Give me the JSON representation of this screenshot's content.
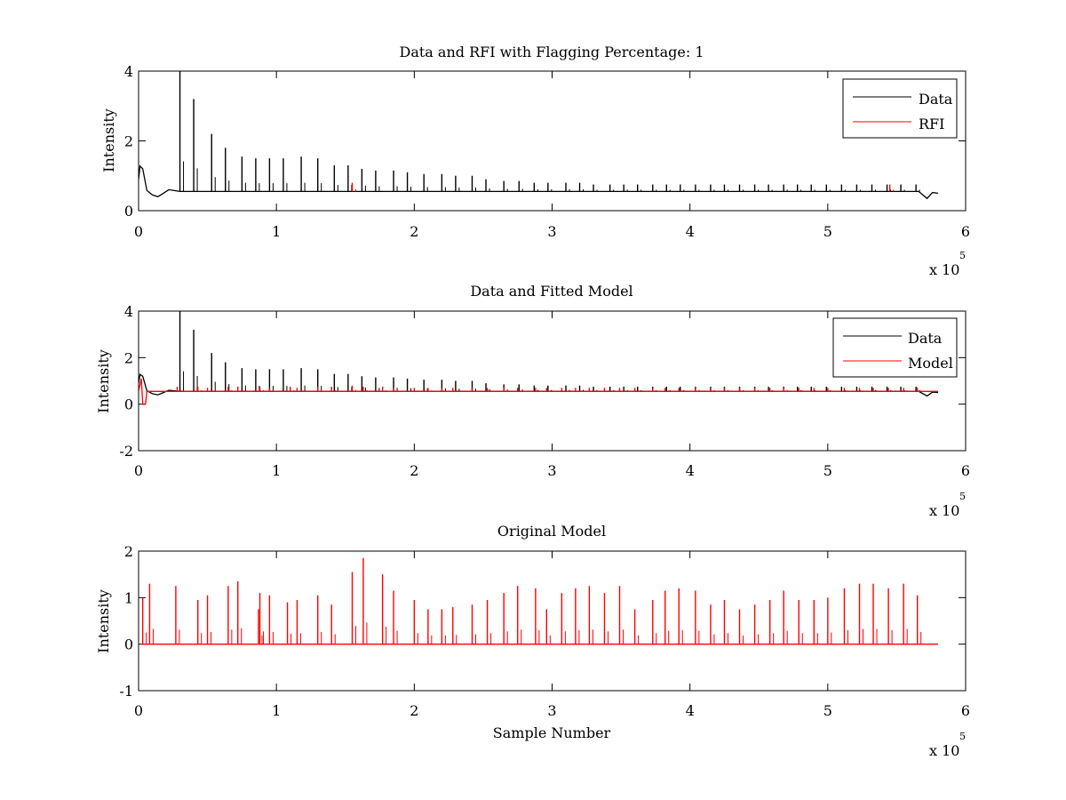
{
  "chart_data": [
    {
      "type": "line",
      "title": "Data and RFI with Flagging Percentage: 1",
      "xlabel": "",
      "ylabel": "Intensity",
      "xlim": [
        0,
        6
      ],
      "ylim": [
        0,
        4
      ],
      "xticks": [
        "0",
        "1",
        "2",
        "3",
        "4",
        "5",
        "6"
      ],
      "yticks": [
        "0",
        "2",
        "4"
      ],
      "x_multiplier": "x 10",
      "x_multiplier_exp": "5",
      "legend": {
        "position": "top-right",
        "entries": [
          "Data",
          "RFI"
        ]
      },
      "series": [
        {
          "name": "Data",
          "color": "#000000",
          "baseline": [
            [
              0.0,
              0.9
            ],
            [
              0.01,
              1.28
            ],
            [
              0.03,
              1.2
            ],
            [
              0.06,
              0.58
            ],
            [
              0.1,
              0.45
            ],
            [
              0.14,
              0.4
            ],
            [
              0.18,
              0.5
            ],
            [
              0.22,
              0.6
            ],
            [
              0.3,
              0.55
            ],
            [
              1.0,
              0.55
            ],
            [
              5.66,
              0.55
            ],
            [
              5.72,
              0.35
            ],
            [
              5.76,
              0.52
            ],
            [
              5.8,
              0.5
            ]
          ],
          "spikes": [
            [
              0.3,
              4.0
            ],
            [
              0.4,
              3.2
            ],
            [
              0.53,
              2.2
            ],
            [
              0.63,
              1.8
            ],
            [
              0.75,
              1.55
            ],
            [
              0.85,
              1.5
            ],
            [
              0.95,
              1.5
            ],
            [
              1.05,
              1.5
            ],
            [
              1.18,
              1.55
            ],
            [
              1.3,
              1.5
            ],
            [
              1.42,
              1.3
            ],
            [
              1.52,
              1.3
            ],
            [
              1.62,
              1.2
            ],
            [
              1.72,
              1.15
            ],
            [
              1.85,
              1.15
            ],
            [
              1.95,
              1.1
            ],
            [
              2.07,
              1.05
            ],
            [
              2.2,
              1.05
            ],
            [
              2.3,
              1.0
            ],
            [
              2.42,
              1.0
            ],
            [
              2.52,
              0.9
            ],
            [
              2.65,
              0.85
            ],
            [
              2.76,
              0.85
            ],
            [
              2.87,
              0.8
            ],
            [
              2.97,
              0.8
            ],
            [
              3.1,
              0.8
            ],
            [
              3.2,
              0.8
            ],
            [
              3.3,
              0.75
            ],
            [
              3.42,
              0.75
            ],
            [
              3.52,
              0.75
            ],
            [
              3.62,
              0.75
            ],
            [
              3.73,
              0.75
            ],
            [
              3.83,
              0.75
            ],
            [
              3.93,
              0.75
            ],
            [
              4.04,
              0.75
            ],
            [
              4.15,
              0.75
            ],
            [
              4.25,
              0.75
            ],
            [
              4.36,
              0.75
            ],
            [
              4.47,
              0.75
            ],
            [
              4.57,
              0.75
            ],
            [
              4.68,
              0.75
            ],
            [
              4.78,
              0.75
            ],
            [
              4.88,
              0.75
            ],
            [
              4.99,
              0.75
            ],
            [
              5.1,
              0.75
            ],
            [
              5.21,
              0.75
            ],
            [
              5.32,
              0.75
            ],
            [
              5.43,
              0.75
            ],
            [
              5.53,
              0.75
            ],
            [
              5.64,
              0.75
            ]
          ]
        },
        {
          "name": "RFI",
          "color": "#ff0000",
          "spikes": [
            [
              1.55,
              0.8
            ],
            [
              5.45,
              0.75
            ]
          ]
        }
      ]
    },
    {
      "type": "line",
      "title": "Data and Fitted Model",
      "xlabel": "",
      "ylabel": "Intensity",
      "xlim": [
        0,
        6
      ],
      "ylim": [
        -2,
        4
      ],
      "xticks": [
        "0",
        "1",
        "2",
        "3",
        "4",
        "5",
        "6"
      ],
      "yticks": [
        "-2",
        "0",
        "2",
        "4"
      ],
      "x_multiplier": "x 10",
      "x_multiplier_exp": "5",
      "legend": {
        "position": "top-right",
        "entries": [
          "Data",
          "Model"
        ]
      },
      "series": [
        {
          "name": "Data",
          "color": "#000000",
          "baseline": [
            [
              0.0,
              0.9
            ],
            [
              0.01,
              1.28
            ],
            [
              0.03,
              1.2
            ],
            [
              0.06,
              0.58
            ],
            [
              0.1,
              0.45
            ],
            [
              0.14,
              0.4
            ],
            [
              0.18,
              0.5
            ],
            [
              0.22,
              0.6
            ],
            [
              0.3,
              0.55
            ],
            [
              1.0,
              0.55
            ],
            [
              5.66,
              0.55
            ],
            [
              5.72,
              0.35
            ],
            [
              5.76,
              0.52
            ],
            [
              5.8,
              0.5
            ]
          ],
          "spikes": [
            [
              0.3,
              4.0
            ],
            [
              0.4,
              3.2
            ],
            [
              0.53,
              2.2
            ],
            [
              0.63,
              1.8
            ],
            [
              0.75,
              1.55
            ],
            [
              0.85,
              1.5
            ],
            [
              0.95,
              1.5
            ],
            [
              1.05,
              1.5
            ],
            [
              1.18,
              1.55
            ],
            [
              1.3,
              1.5
            ],
            [
              1.42,
              1.3
            ],
            [
              1.52,
              1.3
            ],
            [
              1.62,
              1.2
            ],
            [
              1.72,
              1.15
            ],
            [
              1.85,
              1.15
            ],
            [
              1.95,
              1.1
            ],
            [
              2.07,
              1.05
            ],
            [
              2.2,
              1.05
            ],
            [
              2.3,
              1.0
            ],
            [
              2.42,
              1.0
            ],
            [
              2.52,
              0.9
            ],
            [
              2.65,
              0.85
            ],
            [
              2.76,
              0.85
            ],
            [
              2.87,
              0.8
            ],
            [
              2.97,
              0.8
            ],
            [
              3.1,
              0.8
            ],
            [
              3.2,
              0.8
            ],
            [
              3.3,
              0.75
            ],
            [
              3.42,
              0.75
            ],
            [
              3.52,
              0.75
            ],
            [
              3.62,
              0.75
            ],
            [
              3.73,
              0.75
            ],
            [
              3.83,
              0.75
            ],
            [
              3.93,
              0.75
            ],
            [
              4.04,
              0.75
            ],
            [
              4.15,
              0.75
            ],
            [
              4.25,
              0.75
            ],
            [
              4.36,
              0.75
            ],
            [
              4.47,
              0.75
            ],
            [
              4.57,
              0.75
            ],
            [
              4.68,
              0.75
            ],
            [
              4.78,
              0.75
            ],
            [
              4.88,
              0.75
            ],
            [
              4.99,
              0.75
            ],
            [
              5.1,
              0.75
            ],
            [
              5.21,
              0.75
            ],
            [
              5.32,
              0.75
            ],
            [
              5.43,
              0.75
            ],
            [
              5.53,
              0.75
            ],
            [
              5.64,
              0.75
            ]
          ]
        },
        {
          "name": "Model",
          "color": "#ff0000",
          "baseline": [
            [
              0.0,
              0.55
            ],
            [
              0.02,
              1.1
            ],
            [
              0.03,
              0.0
            ],
            [
              0.05,
              0.0
            ],
            [
              0.06,
              0.55
            ],
            [
              5.8,
              0.55
            ]
          ],
          "spikes": [
            [
              0.28,
              0.75
            ],
            [
              0.43,
              0.75
            ],
            [
              0.5,
              0.7
            ],
            [
              0.65,
              0.75
            ],
            [
              0.72,
              0.75
            ],
            [
              0.88,
              0.75
            ],
            [
              0.95,
              0.7
            ],
            [
              1.1,
              0.75
            ],
            [
              1.15,
              0.7
            ],
            [
              1.3,
              0.75
            ],
            [
              1.4,
              0.75
            ],
            [
              1.55,
              0.8
            ],
            [
              1.63,
              0.75
            ],
            [
              1.77,
              0.75
            ],
            [
              1.85,
              0.7
            ],
            [
              2.0,
              0.7
            ],
            [
              2.1,
              0.7
            ],
            [
              2.2,
              0.7
            ],
            [
              2.28,
              0.7
            ],
            [
              2.42,
              0.7
            ],
            [
              2.53,
              0.7
            ],
            [
              2.65,
              0.7
            ],
            [
              2.75,
              0.7
            ],
            [
              2.88,
              0.7
            ],
            [
              2.96,
              0.7
            ],
            [
              3.07,
              0.7
            ],
            [
              3.17,
              0.7
            ],
            [
              3.27,
              0.7
            ],
            [
              3.38,
              0.7
            ],
            [
              3.49,
              0.7
            ],
            [
              3.6,
              0.7
            ],
            [
              3.73,
              0.7
            ],
            [
              3.82,
              0.7
            ],
            [
              3.92,
              0.7
            ],
            [
              4.04,
              0.7
            ],
            [
              4.15,
              0.7
            ],
            [
              4.25,
              0.7
            ],
            [
              4.36,
              0.7
            ],
            [
              4.47,
              0.7
            ],
            [
              4.58,
              0.7
            ],
            [
              4.68,
              0.7
            ],
            [
              4.79,
              0.7
            ],
            [
              4.9,
              0.7
            ],
            [
              5.0,
              0.7
            ],
            [
              5.12,
              0.7
            ],
            [
              5.23,
              0.7
            ],
            [
              5.33,
              0.7
            ],
            [
              5.44,
              0.7
            ],
            [
              5.55,
              0.7
            ],
            [
              5.65,
              0.7
            ]
          ]
        }
      ]
    },
    {
      "type": "line",
      "title": "Original Model",
      "xlabel": "Sample Number",
      "ylabel": "Intensity",
      "xlim": [
        0,
        6
      ],
      "ylim": [
        -1,
        2
      ],
      "xticks": [
        "0",
        "1",
        "2",
        "3",
        "4",
        "5",
        "6"
      ],
      "yticks": [
        "-1",
        "0",
        "1",
        "2"
      ],
      "x_multiplier": "x 10",
      "x_multiplier_exp": "5",
      "series": [
        {
          "color": "#ff0000",
          "baseline": [
            [
              0.02,
              0.0
            ],
            [
              5.8,
              0.0
            ]
          ],
          "spikes": [
            [
              0.03,
              1.0
            ],
            [
              0.08,
              1.3
            ],
            [
              0.27,
              1.25
            ],
            [
              0.43,
              0.95
            ],
            [
              0.5,
              1.05
            ],
            [
              0.65,
              1.25
            ],
            [
              0.72,
              1.35
            ],
            [
              0.87,
              0.75
            ],
            [
              0.88,
              1.1
            ],
            [
              0.95,
              1.05
            ],
            [
              1.08,
              0.9
            ],
            [
              1.15,
              0.95
            ],
            [
              1.3,
              1.05
            ],
            [
              1.4,
              0.85
            ],
            [
              1.55,
              1.55
            ],
            [
              1.63,
              1.85
            ],
            [
              1.77,
              1.5
            ],
            [
              1.85,
              1.15
            ],
            [
              2.0,
              0.95
            ],
            [
              2.1,
              0.75
            ],
            [
              2.2,
              0.75
            ],
            [
              2.28,
              0.8
            ],
            [
              2.42,
              0.85
            ],
            [
              2.53,
              0.95
            ],
            [
              2.65,
              1.1
            ],
            [
              2.75,
              1.25
            ],
            [
              2.88,
              1.2
            ],
            [
              2.96,
              0.75
            ],
            [
              3.07,
              1.1
            ],
            [
              3.17,
              1.2
            ],
            [
              3.27,
              1.25
            ],
            [
              3.38,
              1.1
            ],
            [
              3.49,
              1.25
            ],
            [
              3.6,
              0.75
            ],
            [
              3.73,
              0.95
            ],
            [
              3.82,
              1.15
            ],
            [
              3.92,
              1.2
            ],
            [
              4.04,
              1.15
            ],
            [
              4.15,
              0.85
            ],
            [
              4.25,
              0.95
            ],
            [
              4.36,
              0.75
            ],
            [
              4.47,
              0.85
            ],
            [
              4.58,
              0.95
            ],
            [
              4.68,
              1.15
            ],
            [
              4.79,
              0.95
            ],
            [
              4.9,
              0.95
            ],
            [
              5.0,
              1.0
            ],
            [
              5.12,
              1.2
            ],
            [
              5.23,
              1.3
            ],
            [
              5.33,
              1.3
            ],
            [
              5.44,
              1.2
            ],
            [
              5.55,
              1.3
            ],
            [
              5.65,
              1.05
            ]
          ]
        }
      ]
    }
  ]
}
